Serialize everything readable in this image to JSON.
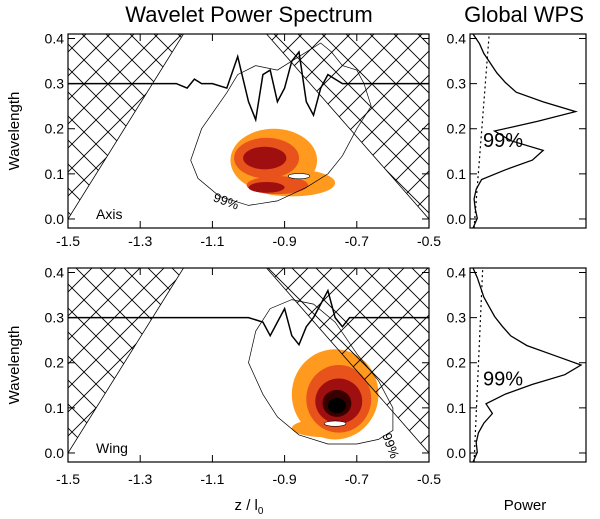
{
  "chart_data": {
    "type": "wavelet-contour",
    "titles": {
      "main": "Wavelet Power Spectrum",
      "global": "Global WPS"
    },
    "xlabel": "z / l",
    "xlabel_sub": "0",
    "ylabel": "Wavelength",
    "global_xlabel": "Power",
    "xlim": [
      -1.5,
      -0.5
    ],
    "ylim": [
      -0.02,
      0.41
    ],
    "x_ticks": [
      -1.5,
      -1.3,
      -1.1,
      -0.9,
      -0.7,
      -0.5
    ],
    "x_tick_labels": [
      "-1.5",
      "-1.3",
      "-1.1",
      "-0.9",
      "-0.7",
      "-0.5"
    ],
    "y_ticks": [
      0.0,
      0.1,
      0.2,
      0.3,
      0.4
    ],
    "y_tick_labels": [
      "0.0",
      "0.1",
      "0.2",
      "0.3",
      "0.4"
    ],
    "contour_colors": [
      "#FF9A1E",
      "#E8531C",
      "#A00F0F",
      "#3A0000",
      "#000000"
    ],
    "panels": [
      {
        "name": "axis",
        "label": "Axis",
        "sig_label": "99%",
        "global_sig_label": "99%",
        "signal_baseline": 0.3,
        "signal_x": [
          -1.5,
          -1.2,
          -1.17,
          -1.15,
          -1.13,
          -1.1,
          -1.06,
          -1.03,
          -1.0,
          -0.98,
          -0.96,
          -0.94,
          -0.92,
          -0.9,
          -0.88,
          -0.86,
          -0.84,
          -0.82,
          -0.8,
          -0.78,
          -0.76,
          -0.74,
          -0.7,
          -0.5
        ],
        "signal_y": [
          0.3,
          0.3,
          0.29,
          0.31,
          0.3,
          0.3,
          0.29,
          0.36,
          0.26,
          0.22,
          0.32,
          0.33,
          0.26,
          0.29,
          0.35,
          0.37,
          0.26,
          0.23,
          0.29,
          0.32,
          0.31,
          0.3,
          0.3,
          0.3
        ],
        "blobs": [
          {
            "level": 1,
            "cx": -0.93,
            "cy": 0.13,
            "rx": 0.12,
            "ry": 0.07
          },
          {
            "level": 1,
            "cx": -0.88,
            "cy": 0.08,
            "rx": 0.12,
            "ry": 0.03
          },
          {
            "level": 2,
            "cx": -0.95,
            "cy": 0.135,
            "rx": 0.09,
            "ry": 0.045
          },
          {
            "level": 2,
            "cx": -0.92,
            "cy": 0.075,
            "rx": 0.085,
            "ry": 0.02
          },
          {
            "level": 3,
            "cx": -0.955,
            "cy": 0.135,
            "rx": 0.06,
            "ry": 0.025
          },
          {
            "level": 3,
            "cx": -0.95,
            "cy": 0.07,
            "rx": 0.05,
            "ry": 0.012
          }
        ],
        "white_spot": {
          "cx": -0.86,
          "cy": 0.095,
          "rx": 0.03,
          "ry": 0.006
        },
        "sig_contour_x": [
          -1.16,
          -1.13,
          -1.06,
          -1.03,
          -0.98,
          -0.92,
          -0.86,
          -0.8,
          -0.77,
          -0.74,
          -0.7,
          -0.68,
          -0.66,
          -0.7,
          -0.74,
          -0.78,
          -0.84,
          -0.92,
          -1.0,
          -1.08,
          -1.14,
          -1.16
        ],
        "sig_contour_y": [
          0.13,
          0.2,
          0.28,
          0.32,
          0.34,
          0.33,
          0.36,
          0.39,
          0.37,
          0.34,
          0.33,
          0.3,
          0.25,
          0.2,
          0.14,
          0.1,
          0.07,
          0.04,
          0.03,
          0.05,
          0.09,
          0.13
        ],
        "global_power": [
          0.0,
          0.04,
          0.02,
          0.01,
          0.03,
          0.08,
          0.3,
          0.55,
          0.65,
          0.35,
          0.2,
          0.6,
          0.95,
          0.65,
          0.4,
          0.3,
          0.22,
          0.16,
          0.1,
          0.06,
          0.0
        ],
        "global_sig": 0.15
      },
      {
        "name": "wing",
        "label": "Wing",
        "sig_label": "99%",
        "global_sig_label": "99%",
        "signal_baseline": 0.3,
        "signal_x": [
          -1.5,
          -1.0,
          -0.96,
          -0.94,
          -0.92,
          -0.9,
          -0.88,
          -0.86,
          -0.84,
          -0.82,
          -0.8,
          -0.78,
          -0.76,
          -0.74,
          -0.72,
          -0.7,
          -0.5
        ],
        "signal_y": [
          0.3,
          0.3,
          0.29,
          0.26,
          0.29,
          0.32,
          0.26,
          0.24,
          0.28,
          0.3,
          0.33,
          0.36,
          0.3,
          0.28,
          0.3,
          0.3,
          0.3
        ],
        "blobs": [
          {
            "level": 1,
            "cx": -0.76,
            "cy": 0.13,
            "rx": 0.12,
            "ry": 0.1
          },
          {
            "level": 1,
            "cx": -0.79,
            "cy": 0.055,
            "rx": 0.09,
            "ry": 0.02
          },
          {
            "level": 2,
            "cx": -0.75,
            "cy": 0.12,
            "rx": 0.09,
            "ry": 0.075
          },
          {
            "level": 3,
            "cx": -0.75,
            "cy": 0.115,
            "rx": 0.065,
            "ry": 0.05
          },
          {
            "level": 4,
            "cx": -0.755,
            "cy": 0.11,
            "rx": 0.04,
            "ry": 0.03
          },
          {
            "level": 5,
            "cx": -0.755,
            "cy": 0.105,
            "rx": 0.025,
            "ry": 0.017
          }
        ],
        "white_spot": {
          "cx": -0.76,
          "cy": 0.065,
          "rx": 0.03,
          "ry": 0.006
        },
        "sig_contour_x": [
          -1.0,
          -0.98,
          -0.94,
          -0.88,
          -0.82,
          -0.76,
          -0.7,
          -0.64,
          -0.6,
          -0.6,
          -0.64,
          -0.7,
          -0.78,
          -0.86,
          -0.92,
          -0.96,
          -1.0
        ],
        "sig_contour_y": [
          0.2,
          0.27,
          0.32,
          0.34,
          0.33,
          0.29,
          0.22,
          0.16,
          0.1,
          0.05,
          0.03,
          0.02,
          0.02,
          0.04,
          0.08,
          0.13,
          0.2
        ],
        "global_power": [
          0.0,
          0.04,
          0.03,
          0.05,
          0.1,
          0.18,
          0.12,
          0.3,
          0.55,
          0.85,
          1.0,
          0.75,
          0.5,
          0.35,
          0.27,
          0.2,
          0.15,
          0.1,
          0.07,
          0.04,
          0.0
        ],
        "global_sig": 0.09
      }
    ]
  }
}
